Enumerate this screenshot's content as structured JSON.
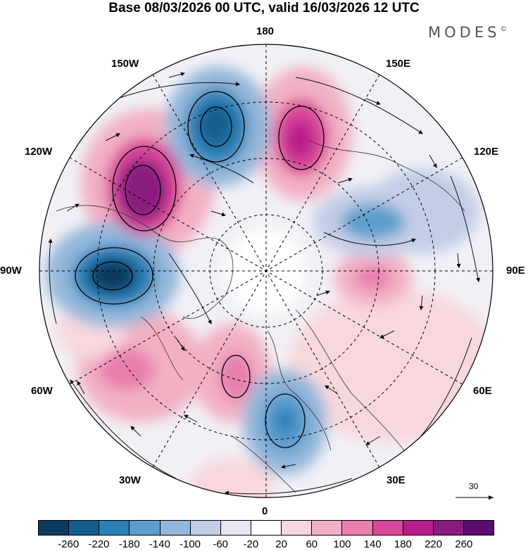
{
  "title": "Base 08/03/2026 00 UTC, valid 16/03/2026 12 UTC",
  "brand": {
    "name": "MODES",
    "mark": "©"
  },
  "longitude_labels": {
    "top": "180",
    "bottom": "0",
    "left": "90W",
    "right": "90E",
    "upper_left": "150W",
    "upper_right": "150E",
    "mid_left_upper": "120W",
    "mid_right_upper": "120E",
    "mid_left_lower": "60W",
    "mid_right_lower": "60E",
    "lower_left": "30W",
    "lower_right": "30E"
  },
  "reference_vector": {
    "label": "30"
  },
  "colorbar": {
    "colors": [
      "#0d3b5e",
      "#125f8e",
      "#2b80b8",
      "#5d9ecd",
      "#93b7da",
      "#c2cde6",
      "#e6e6f2",
      "#ffffff",
      "#f8d8dd",
      "#f2b1c3",
      "#e87fae",
      "#d9479a",
      "#b81d8a",
      "#881b7f",
      "#5c0d70"
    ],
    "ticks": [
      "-260",
      "-220",
      "-180",
      "-140",
      "-100",
      "-60",
      "-20",
      "20",
      "60",
      "100",
      "140",
      "180",
      "220",
      "260"
    ]
  }
}
